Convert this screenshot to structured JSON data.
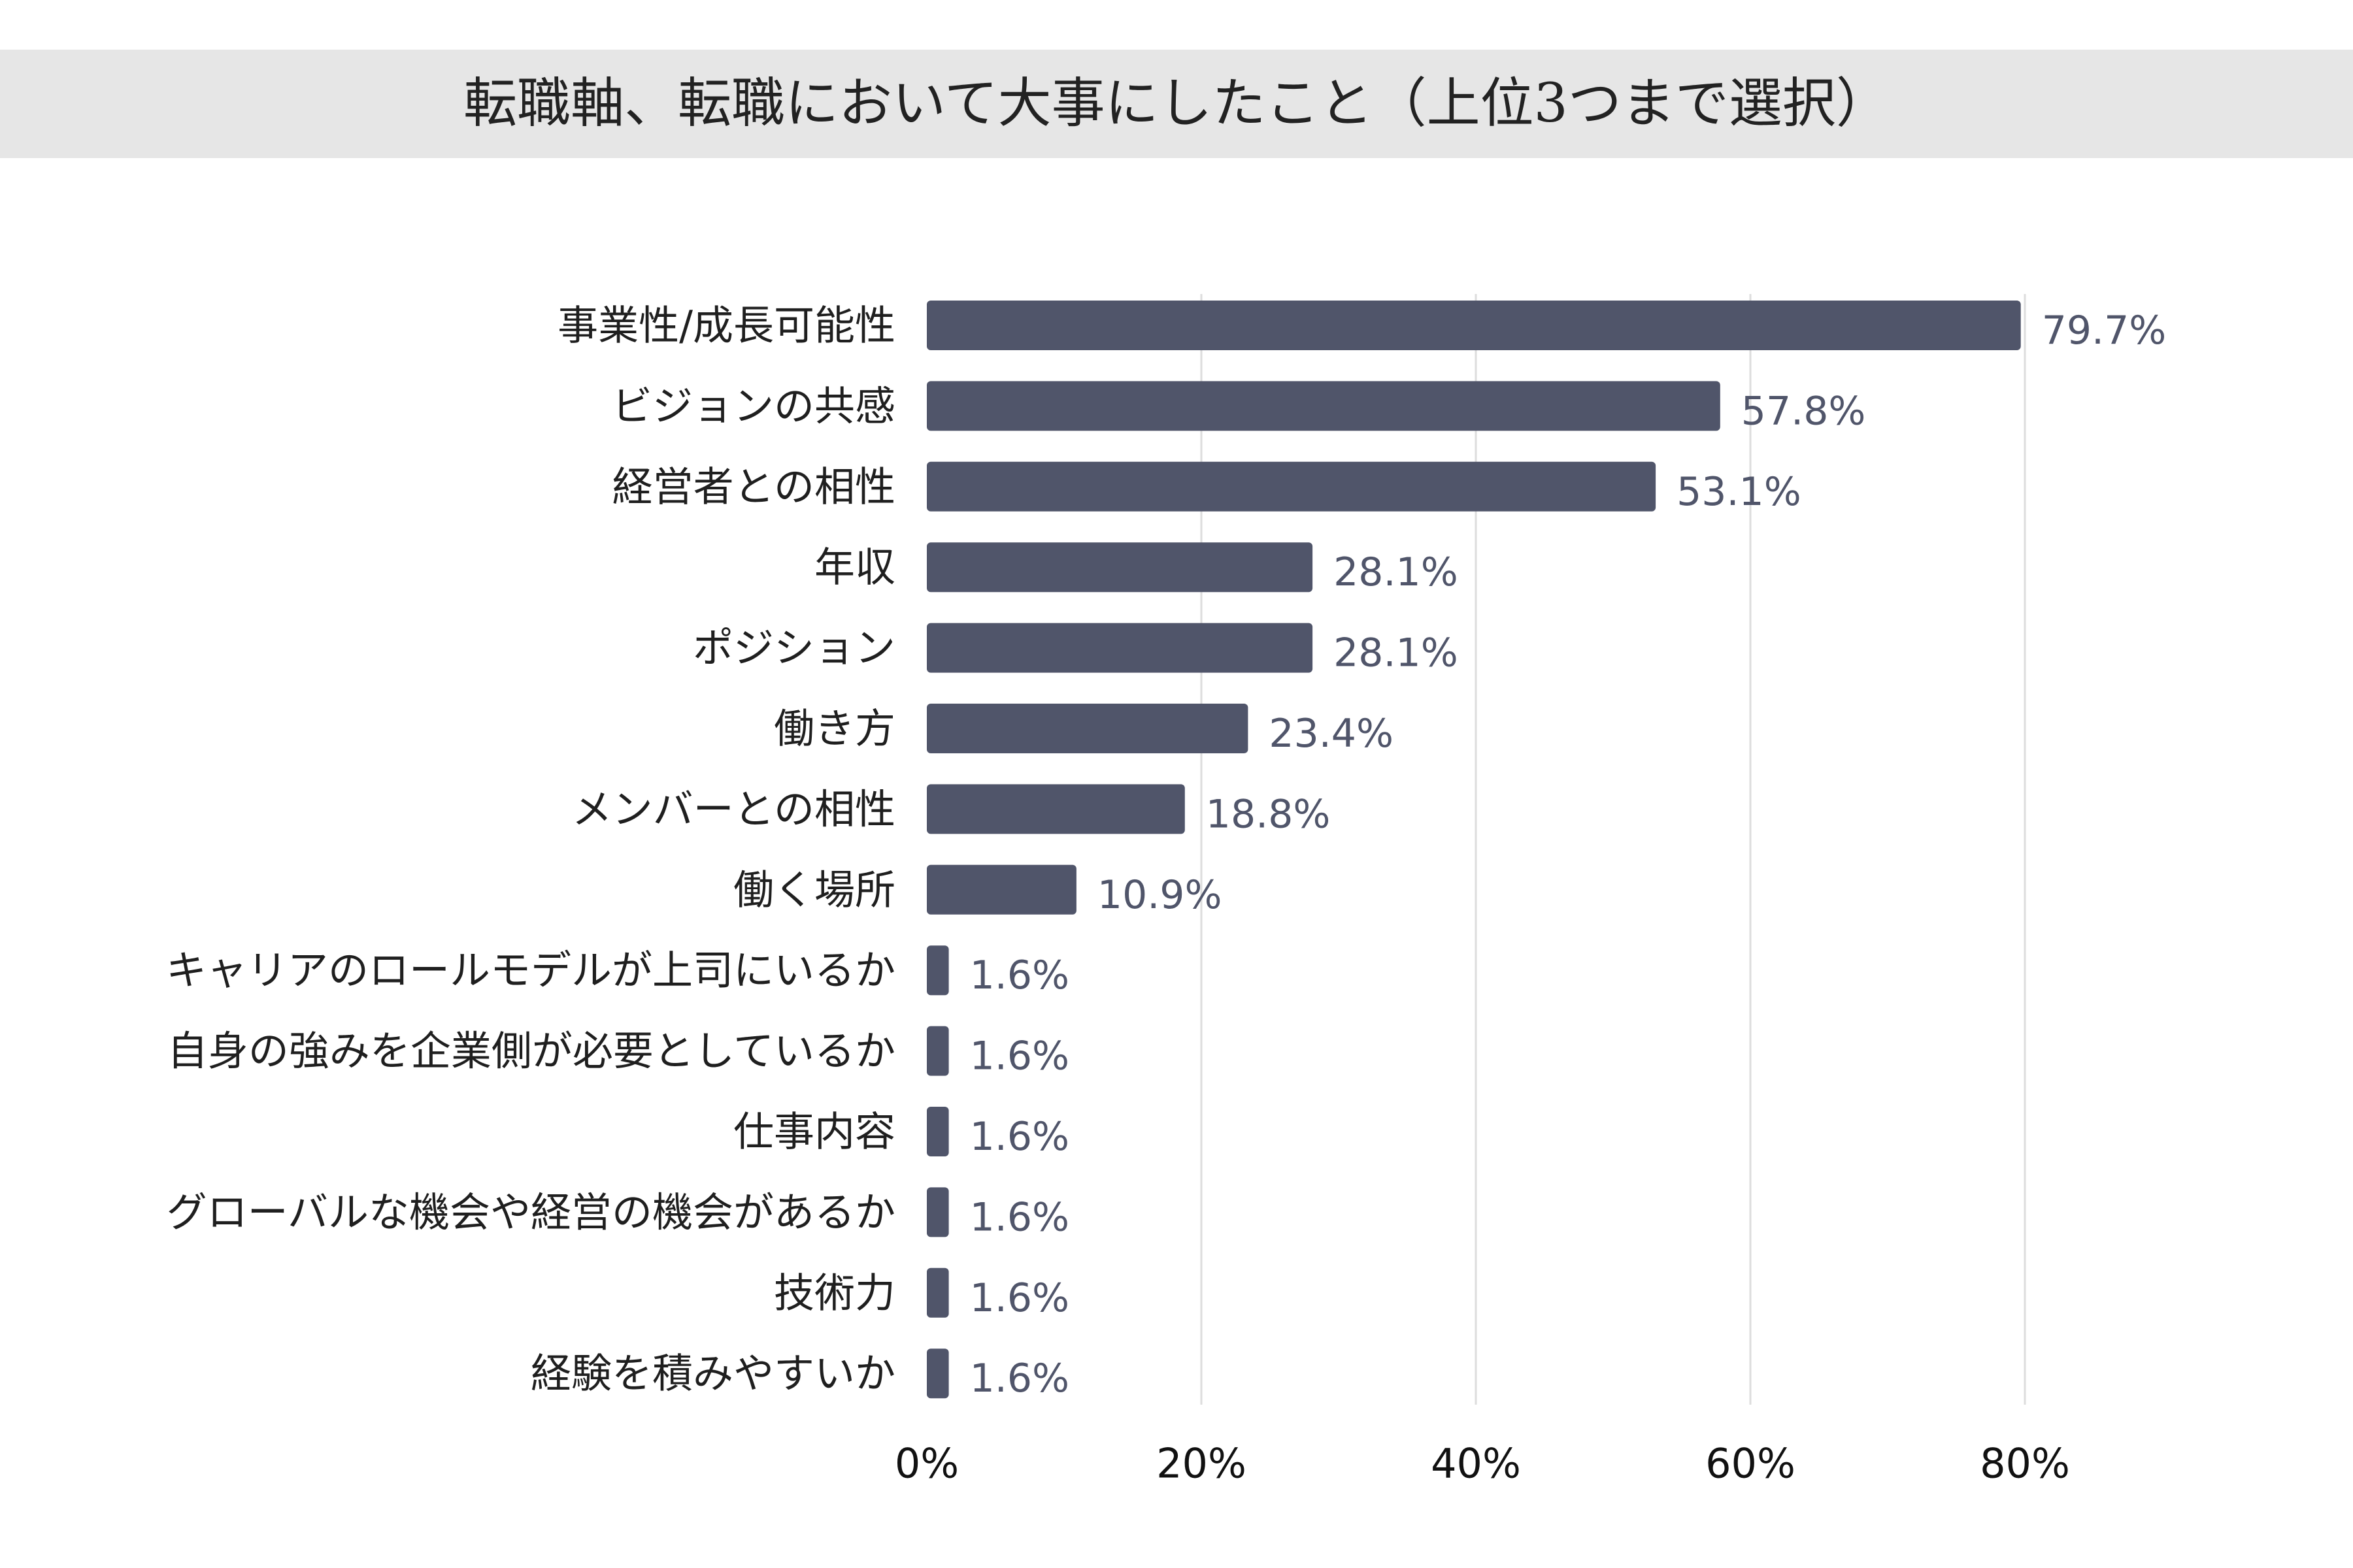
{
  "chart_data": {
    "type": "bar",
    "orientation": "horizontal",
    "title": "転職軸、転職において大事にしたこと（上位3つまで選択）",
    "categories": [
      "事業性/成長可能性",
      "ビジョンの共感",
      "経営者との相性",
      "年収",
      "ポジション",
      "働き方",
      "メンバーとの相性",
      "働く場所",
      "キャリアのロールモデルが上司にいるか",
      "自身の強みを企業側が必要としているか",
      "仕事内容",
      "グローバルな機会や経営の機会があるか",
      "技術力",
      "経験を積みやすいか"
    ],
    "values": [
      79.7,
      57.8,
      53.1,
      28.1,
      28.1,
      23.4,
      18.8,
      10.9,
      1.6,
      1.6,
      1.6,
      1.6,
      1.6,
      1.6
    ],
    "value_labels": [
      "79.7%",
      "57.8%",
      "53.1%",
      "28.1%",
      "28.1%",
      "23.4%",
      "18.8%",
      "10.9%",
      "1.6%",
      "1.6%",
      "1.6%",
      "1.6%",
      "1.6%",
      "1.6%"
    ],
    "xlim": [
      0,
      80
    ],
    "xticks": [
      0,
      20,
      40,
      60,
      80
    ],
    "xtick_labels": [
      "0%",
      "20%",
      "40%",
      "60%",
      "80%"
    ],
    "xlabel": "",
    "ylabel": "",
    "grid": true,
    "bar_color": "#50556a",
    "grid_color": "#dddddd"
  }
}
